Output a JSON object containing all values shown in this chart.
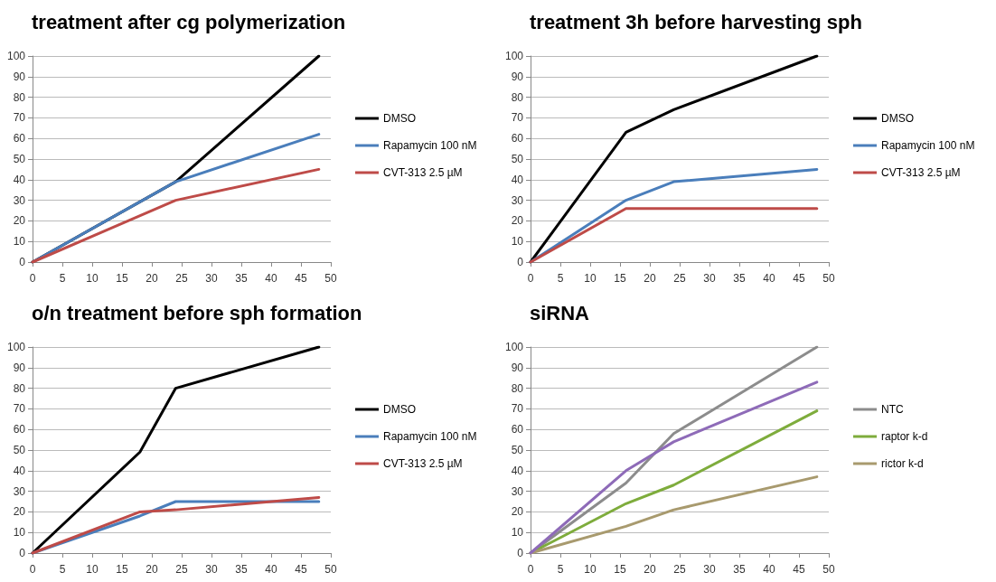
{
  "chart_data": [
    {
      "type": "line",
      "title": "treatment after cg polymerization",
      "xlim": [
        0,
        50
      ],
      "xticks": [
        0,
        5,
        10,
        15,
        20,
        25,
        30,
        35,
        40,
        45,
        50
      ],
      "ylim": [
        0,
        100
      ],
      "yticks": [
        0,
        10,
        20,
        30,
        40,
        50,
        60,
        70,
        80,
        90,
        100
      ],
      "grid": "y",
      "legend": "right",
      "marker": "none",
      "line_style": "solid",
      "series": [
        {
          "name": "DMSO",
          "color": "#000000",
          "x": [
            0,
            24,
            48
          ],
          "values": [
            0,
            39,
            100
          ]
        },
        {
          "name": "Rapamycin 100 nM",
          "color": "#4a7ebb",
          "x": [
            0,
            24,
            48
          ],
          "values": [
            0,
            39,
            62
          ]
        },
        {
          "name": "CVT-313 2.5 µM",
          "color": "#be4b48",
          "x": [
            0,
            24,
            48
          ],
          "values": [
            0,
            30,
            45
          ]
        }
      ]
    },
    {
      "type": "line",
      "title": "treatment 3h before harvesting sph",
      "xlim": [
        0,
        50
      ],
      "xticks": [
        0,
        5,
        10,
        15,
        20,
        25,
        30,
        35,
        40,
        45,
        50
      ],
      "ylim": [
        0,
        100
      ],
      "yticks": [
        0,
        10,
        20,
        30,
        40,
        50,
        60,
        70,
        80,
        90,
        100
      ],
      "grid": "y",
      "legend": "right",
      "marker": "none",
      "line_style": "solid",
      "series": [
        {
          "name": "DMSO",
          "color": "#000000",
          "x": [
            0,
            16,
            24,
            48
          ],
          "values": [
            0,
            63,
            74,
            100
          ]
        },
        {
          "name": "Rapamycin 100 nM",
          "color": "#4a7ebb",
          "x": [
            0,
            16,
            24,
            48
          ],
          "values": [
            0,
            30,
            39,
            45
          ]
        },
        {
          "name": "CVT-313 2.5 µM",
          "color": "#be4b48",
          "x": [
            0,
            16,
            24,
            48
          ],
          "values": [
            0,
            26,
            26,
            26
          ]
        }
      ]
    },
    {
      "type": "line",
      "title": "o/n treatment before sph formation",
      "xlim": [
        0,
        50
      ],
      "xticks": [
        0,
        5,
        10,
        15,
        20,
        25,
        30,
        35,
        40,
        45,
        50
      ],
      "ylim": [
        0,
        100
      ],
      "yticks": [
        0,
        10,
        20,
        30,
        40,
        50,
        60,
        70,
        80,
        90,
        100
      ],
      "grid": "y",
      "legend": "right",
      "marker": "none",
      "line_style": "solid",
      "series": [
        {
          "name": "DMSO",
          "color": "#000000",
          "x": [
            0,
            18,
            24,
            48
          ],
          "values": [
            0,
            49,
            80,
            100
          ]
        },
        {
          "name": "Rapamycin 100 nM",
          "color": "#4a7ebb",
          "x": [
            0,
            18,
            24,
            48
          ],
          "values": [
            0,
            18,
            25,
            25
          ]
        },
        {
          "name": "CVT-313 2.5 µM",
          "color": "#be4b48",
          "x": [
            0,
            18,
            24,
            48
          ],
          "values": [
            0,
            20,
            21,
            27
          ]
        }
      ]
    },
    {
      "type": "line",
      "title": "siRNA",
      "xlim": [
        0,
        50
      ],
      "xticks": [
        0,
        5,
        10,
        15,
        20,
        25,
        30,
        35,
        40,
        45,
        50
      ],
      "ylim": [
        0,
        100
      ],
      "yticks": [
        0,
        10,
        20,
        30,
        40,
        50,
        60,
        70,
        80,
        90,
        100
      ],
      "grid": "y",
      "legend": "right",
      "marker": "none",
      "line_style": "solid",
      "series": [
        {
          "name": "NTC",
          "color": "#8c8c8c",
          "x": [
            0,
            16,
            24,
            48
          ],
          "values": [
            0,
            34,
            58,
            100
          ]
        },
        {
          "name": "raptor k-d",
          "color": "#7eac3c",
          "x": [
            0,
            16,
            24,
            48
          ],
          "values": [
            0,
            24,
            33,
            69
          ]
        },
        {
          "name": "rictor k-d",
          "color": "#a89a6e",
          "x": [
            0,
            16,
            24,
            48
          ],
          "values": [
            0,
            13,
            21,
            37
          ]
        },
        {
          "color": "#8e6bb8",
          "x": [
            0,
            16,
            24,
            48
          ],
          "values": [
            0,
            40,
            54,
            83
          ]
        }
      ]
    }
  ]
}
